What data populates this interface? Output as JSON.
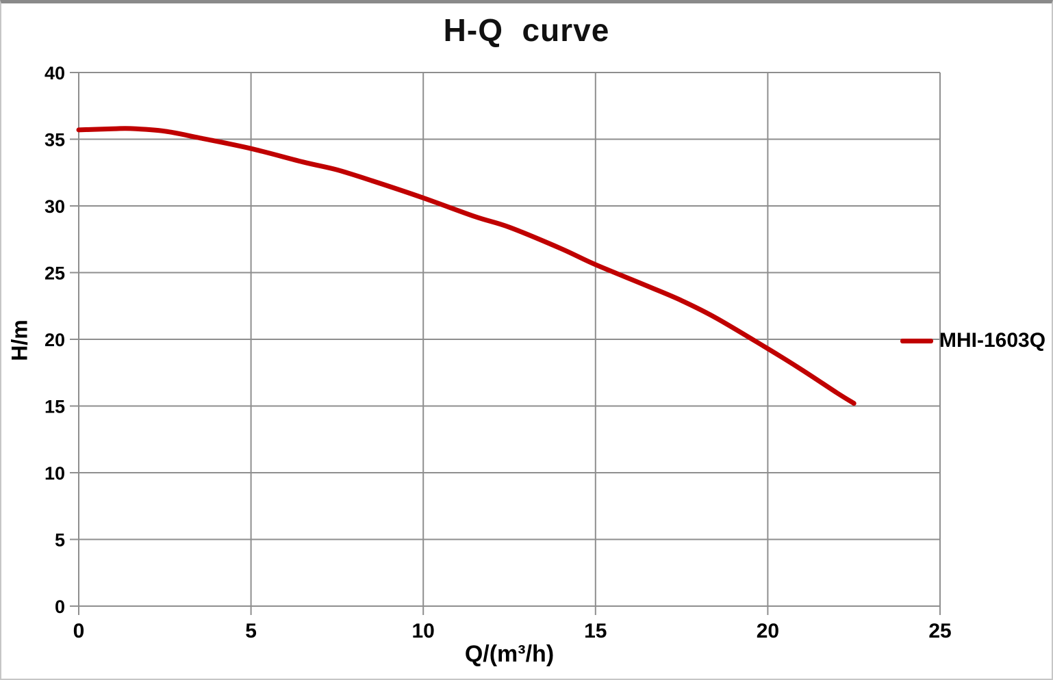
{
  "window": {
    "background": "#ffffff",
    "border_color": "#8a8a8a"
  },
  "chart_data": {
    "type": "line",
    "title": "H-Q  curve",
    "xlabel": "Q/(m³/h)",
    "ylabel": "H/m",
    "xlim": [
      0,
      25
    ],
    "ylim": [
      0,
      40
    ],
    "x_ticks": [
      0,
      5,
      10,
      15,
      20,
      25
    ],
    "y_ticks": [
      0,
      5,
      10,
      15,
      20,
      25,
      30,
      35,
      40
    ],
    "grid": true,
    "grid_color": "#8e8e8e",
    "legend_position": "right",
    "series": [
      {
        "name": "MHI-1603Q",
        "color": "#C00000",
        "points": [
          [
            0,
            35.7
          ],
          [
            1,
            35.78
          ],
          [
            1.5,
            35.8
          ],
          [
            2.5,
            35.6
          ],
          [
            3.5,
            35.1
          ],
          [
            5,
            34.3
          ],
          [
            6.5,
            33.3
          ],
          [
            7.5,
            32.7
          ],
          [
            8.5,
            31.9
          ],
          [
            10,
            30.6
          ],
          [
            11.5,
            29.2
          ],
          [
            12.5,
            28.4
          ],
          [
            14,
            26.8
          ],
          [
            15,
            25.6
          ],
          [
            16.5,
            24.0
          ],
          [
            17.5,
            22.9
          ],
          [
            18.5,
            21.6
          ],
          [
            20,
            19.3
          ],
          [
            21,
            17.7
          ],
          [
            22,
            16.0
          ],
          [
            22.5,
            15.2
          ]
        ]
      }
    ]
  }
}
